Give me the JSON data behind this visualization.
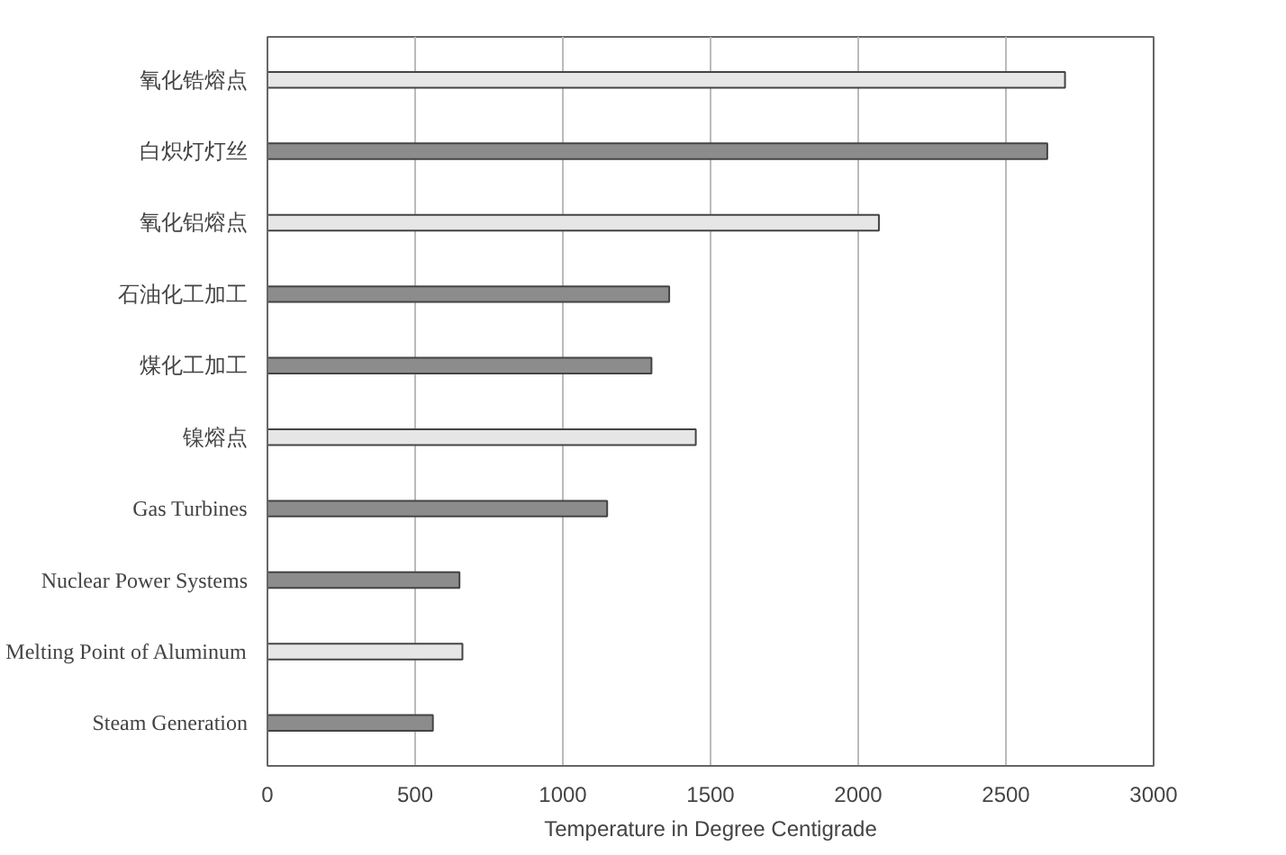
{
  "chart_data": {
    "type": "bar",
    "orientation": "horizontal",
    "xlabel": "Temperature in Degree Centigrade",
    "categories": [
      "氧化锆熔点",
      "白炽灯灯丝",
      "氧化铝熔点",
      "石油化工加工",
      "煤化工加工",
      "镍熔点",
      "Gas Turbines",
      "Nuclear Power Systems",
      "Melting Point of Aluminum",
      "Steam Generation"
    ],
    "values": [
      2700,
      2640,
      2070,
      1360,
      1300,
      1450,
      1150,
      650,
      660,
      560
    ],
    "colors": [
      "#e6e6e6",
      "#8c8c8c",
      "#e6e6e6",
      "#8c8c8c",
      "#8c8c8c",
      "#e6e6e6",
      "#8c8c8c",
      "#8c8c8c",
      "#e6e6e6",
      "#8c8c8c"
    ],
    "xlim": [
      0,
      3000
    ],
    "xticks": [
      0,
      500,
      1000,
      1500,
      2000,
      2500,
      3000
    ],
    "grid": "x"
  }
}
